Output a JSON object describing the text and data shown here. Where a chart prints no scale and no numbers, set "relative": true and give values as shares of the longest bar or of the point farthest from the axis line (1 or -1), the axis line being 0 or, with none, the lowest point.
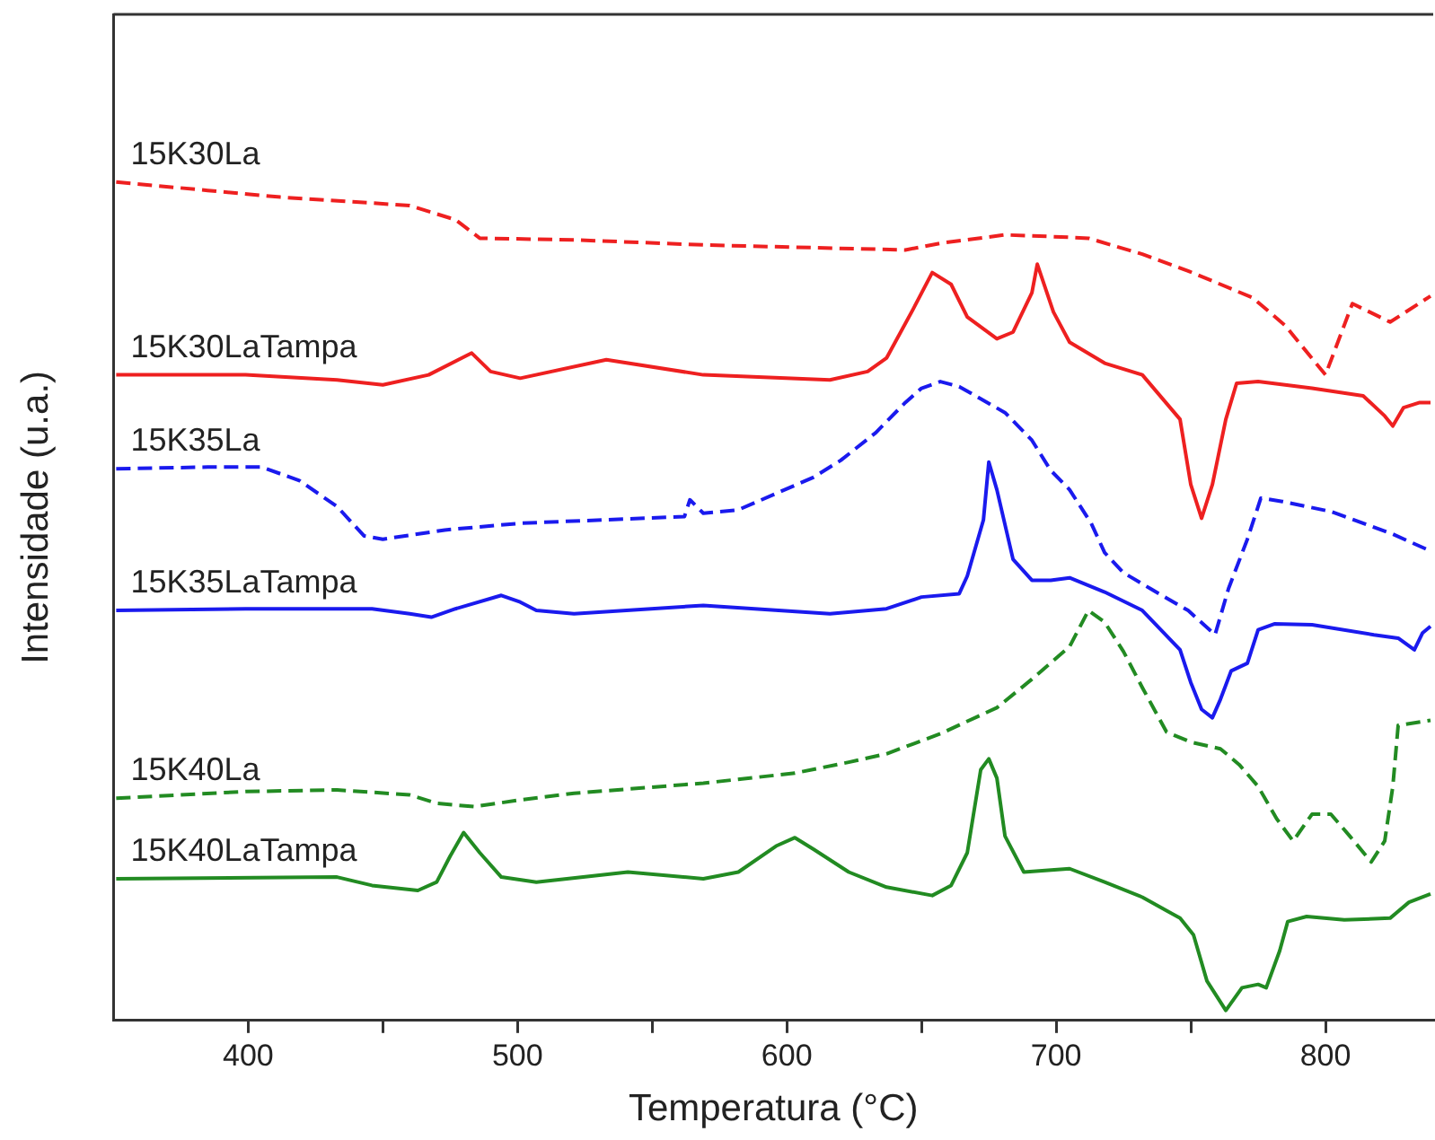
{
  "chart_data": {
    "type": "line",
    "relative": true,
    "xlabel": "Temperatura (°C)",
    "ylabel": "Intensidade (u.a.)",
    "xlim": [
      350,
      840
    ],
    "xticks": [
      400,
      {
        "value": 450,
        "label": null
      },
      500,
      {
        "value": 550,
        "label": null
      },
      600,
      {
        "value": 650,
        "label": null
      },
      700,
      {
        "value": 750,
        "label": null
      },
      800
    ],
    "grid": false,
    "legend": false,
    "marker": "none",
    "series": [
      {
        "name": "15K30La",
        "color": "#ee2020",
        "line_style": "dashed",
        "x": [
          351,
          385,
          412,
          460,
          477,
          486,
          521,
          569,
          644,
          657,
          681,
          698,
          712,
          732,
          749,
          773,
          785,
          800,
          810,
          824,
          839
        ],
        "values": [
          1.0,
          0.99,
          0.982,
          0.972,
          0.955,
          0.933,
          0.931,
          0.925,
          0.919,
          0.927,
          0.937,
          0.935,
          0.933,
          0.914,
          0.894,
          0.862,
          0.829,
          0.77,
          0.855,
          0.833,
          0.864
        ]
      },
      {
        "name": "15K30LaTampa",
        "color": "#ee2020",
        "line_style": "solid",
        "x": [
          351,
          399,
          433,
          450,
          467,
          483,
          490,
          501,
          533,
          569,
          616,
          630,
          637,
          647,
          654,
          661,
          667,
          678,
          684,
          691,
          693,
          699,
          705,
          718,
          732,
          746,
          750,
          754,
          758,
          763,
          767,
          775,
          795,
          814,
          822,
          825,
          829,
          835,
          839
        ],
        "values": [
          0.77,
          0.77,
          0.764,
          0.758,
          0.77,
          0.796,
          0.774,
          0.766,
          0.788,
          0.77,
          0.764,
          0.774,
          0.79,
          0.849,
          0.892,
          0.878,
          0.839,
          0.813,
          0.821,
          0.868,
          0.902,
          0.845,
          0.809,
          0.784,
          0.77,
          0.717,
          0.639,
          0.599,
          0.639,
          0.717,
          0.76,
          0.762,
          0.754,
          0.745,
          0.721,
          0.709,
          0.731,
          0.737,
          0.737
        ]
      },
      {
        "name": "15K35La",
        "color": "#1a1aee",
        "line_style": "dashed",
        "x": [
          351,
          385,
          405,
          419,
          433,
          443,
          450,
          473,
          501,
          562,
          564,
          569,
          582,
          610,
          620,
          633,
          644,
          650,
          657,
          664,
          681,
          691,
          698,
          705,
          713,
          718,
          725,
          735,
          749,
          759,
          764,
          771,
          776,
          784,
          802,
          825,
          839
        ],
        "values": [
          0.658,
          0.66,
          0.66,
          0.644,
          0.613,
          0.578,
          0.574,
          0.585,
          0.593,
          0.601,
          0.621,
          0.605,
          0.609,
          0.648,
          0.668,
          0.701,
          0.737,
          0.754,
          0.762,
          0.756,
          0.725,
          0.692,
          0.656,
          0.633,
          0.593,
          0.558,
          0.534,
          0.515,
          0.489,
          0.46,
          0.515,
          0.574,
          0.623,
          0.619,
          0.607,
          0.58,
          0.56
        ]
      },
      {
        "name": "15K35LaTampa",
        "color": "#1a1aee",
        "line_style": "solid",
        "x": [
          351,
          399,
          446,
          460,
          468,
          477,
          494,
          501,
          507,
          521,
          569,
          616,
          637,
          650,
          664,
          667,
          673,
          675,
          678,
          684,
          691,
          698,
          705,
          718,
          732,
          746,
          750,
          754,
          758,
          761,
          765,
          771,
          775,
          781,
          795,
          818,
          827,
          833,
          836,
          839
        ],
        "values": [
          0.489,
          0.491,
          0.491,
          0.485,
          0.481,
          0.491,
          0.507,
          0.499,
          0.489,
          0.485,
          0.495,
          0.485,
          0.491,
          0.505,
          0.509,
          0.53,
          0.597,
          0.666,
          0.633,
          0.55,
          0.525,
          0.525,
          0.528,
          0.511,
          0.489,
          0.442,
          0.403,
          0.371,
          0.361,
          0.383,
          0.417,
          0.426,
          0.466,
          0.473,
          0.472,
          0.46,
          0.456,
          0.442,
          0.462,
          0.47
        ]
      },
      {
        "name": "15K40La",
        "color": "#228b22",
        "line_style": "dashed",
        "x": [
          351,
          399,
          433,
          460,
          470,
          484,
          501,
          521,
          569,
          603,
          623,
          637,
          657,
          678,
          691,
          705,
          712,
          718,
          725,
          732,
          741,
          750,
          761,
          768,
          775,
          782,
          788,
          795,
          802,
          809,
          817,
          822,
          825,
          827,
          839
        ],
        "values": [
          0.265,
          0.273,
          0.275,
          0.269,
          0.259,
          0.255,
          0.263,
          0.271,
          0.283,
          0.295,
          0.308,
          0.318,
          0.342,
          0.373,
          0.407,
          0.446,
          0.489,
          0.475,
          0.44,
          0.397,
          0.344,
          0.332,
          0.324,
          0.305,
          0.279,
          0.24,
          0.214,
          0.246,
          0.246,
          0.22,
          0.189,
          0.214,
          0.279,
          0.352,
          0.358
        ]
      },
      {
        "name": "15K40LaTampa",
        "color": "#228b22",
        "line_style": "solid",
        "x": [
          351,
          433,
          446,
          463,
          470,
          475,
          480,
          486,
          494,
          507,
          541,
          569,
          582,
          596,
          603,
          610,
          623,
          637,
          654,
          661,
          667,
          672,
          675,
          678,
          681,
          688,
          705,
          718,
          732,
          746,
          751,
          756,
          763,
          769,
          775,
          778,
          783,
          786,
          793,
          807,
          824,
          831,
          839
        ],
        "values": [
          0.169,
          0.171,
          0.161,
          0.155,
          0.165,
          0.196,
          0.224,
          0.2,
          0.171,
          0.165,
          0.177,
          0.169,
          0.177,
          0.208,
          0.218,
          0.204,
          0.177,
          0.159,
          0.149,
          0.161,
          0.2,
          0.299,
          0.312,
          0.289,
          0.22,
          0.177,
          0.181,
          0.165,
          0.147,
          0.122,
          0.102,
          0.047,
          0.012,
          0.039,
          0.043,
          0.039,
          0.083,
          0.118,
          0.124,
          0.12,
          0.122,
          0.141,
          0.151
        ]
      }
    ]
  }
}
